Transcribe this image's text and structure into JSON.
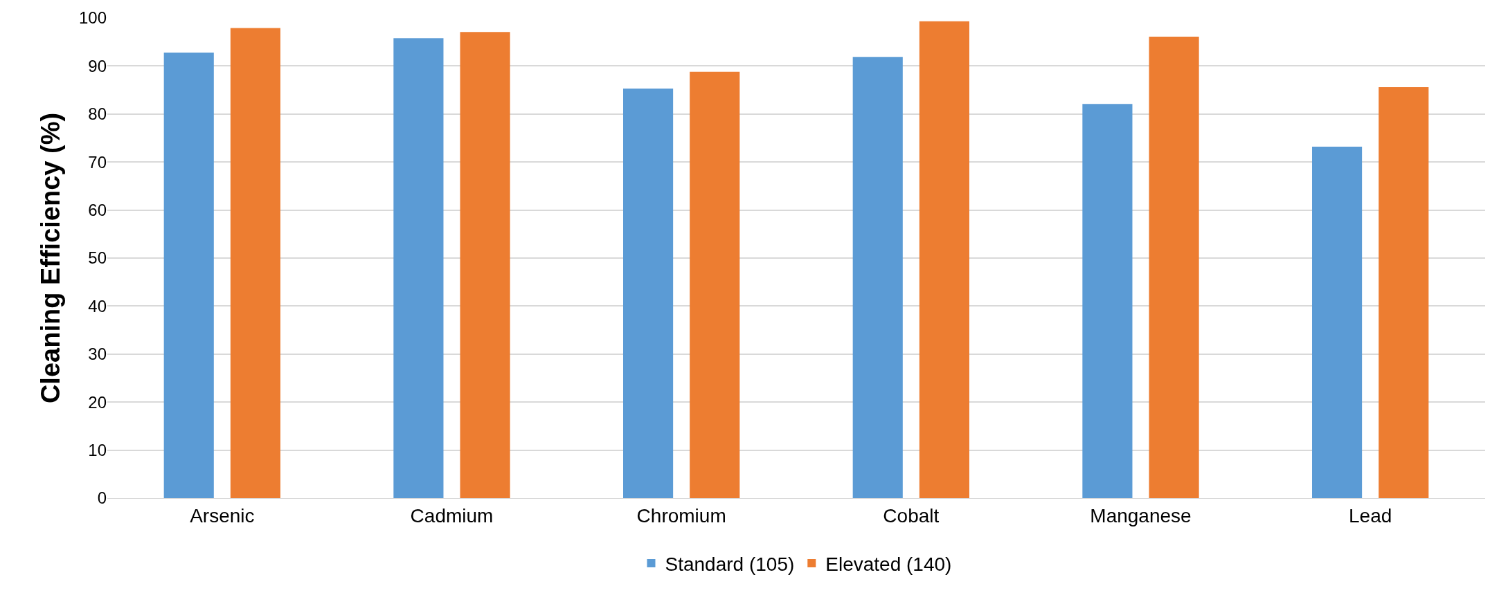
{
  "chart_data": {
    "type": "bar",
    "ylabel": "Cleaning Efficiency (%)",
    "categories": [
      "Arsenic",
      "Cadmium",
      "Chromium",
      "Cobalt",
      "Manganese",
      "Lead"
    ],
    "series": [
      {
        "name": "Standard (105)",
        "color": "#5b9bd5",
        "values": [
          92.8,
          95.8,
          85.3,
          91.9,
          82.1,
          73.2
        ]
      },
      {
        "name": "Elevated (140)",
        "color": "#ed7d31",
        "values": [
          97.9,
          97.1,
          88.8,
          99.3,
          96.1,
          85.6
        ]
      }
    ],
    "ylim": [
      0,
      100
    ],
    "yticks": [
      0,
      10,
      20,
      30,
      40,
      50,
      60,
      70,
      80,
      90,
      100
    ],
    "grid": "y",
    "legend": "bottom"
  }
}
